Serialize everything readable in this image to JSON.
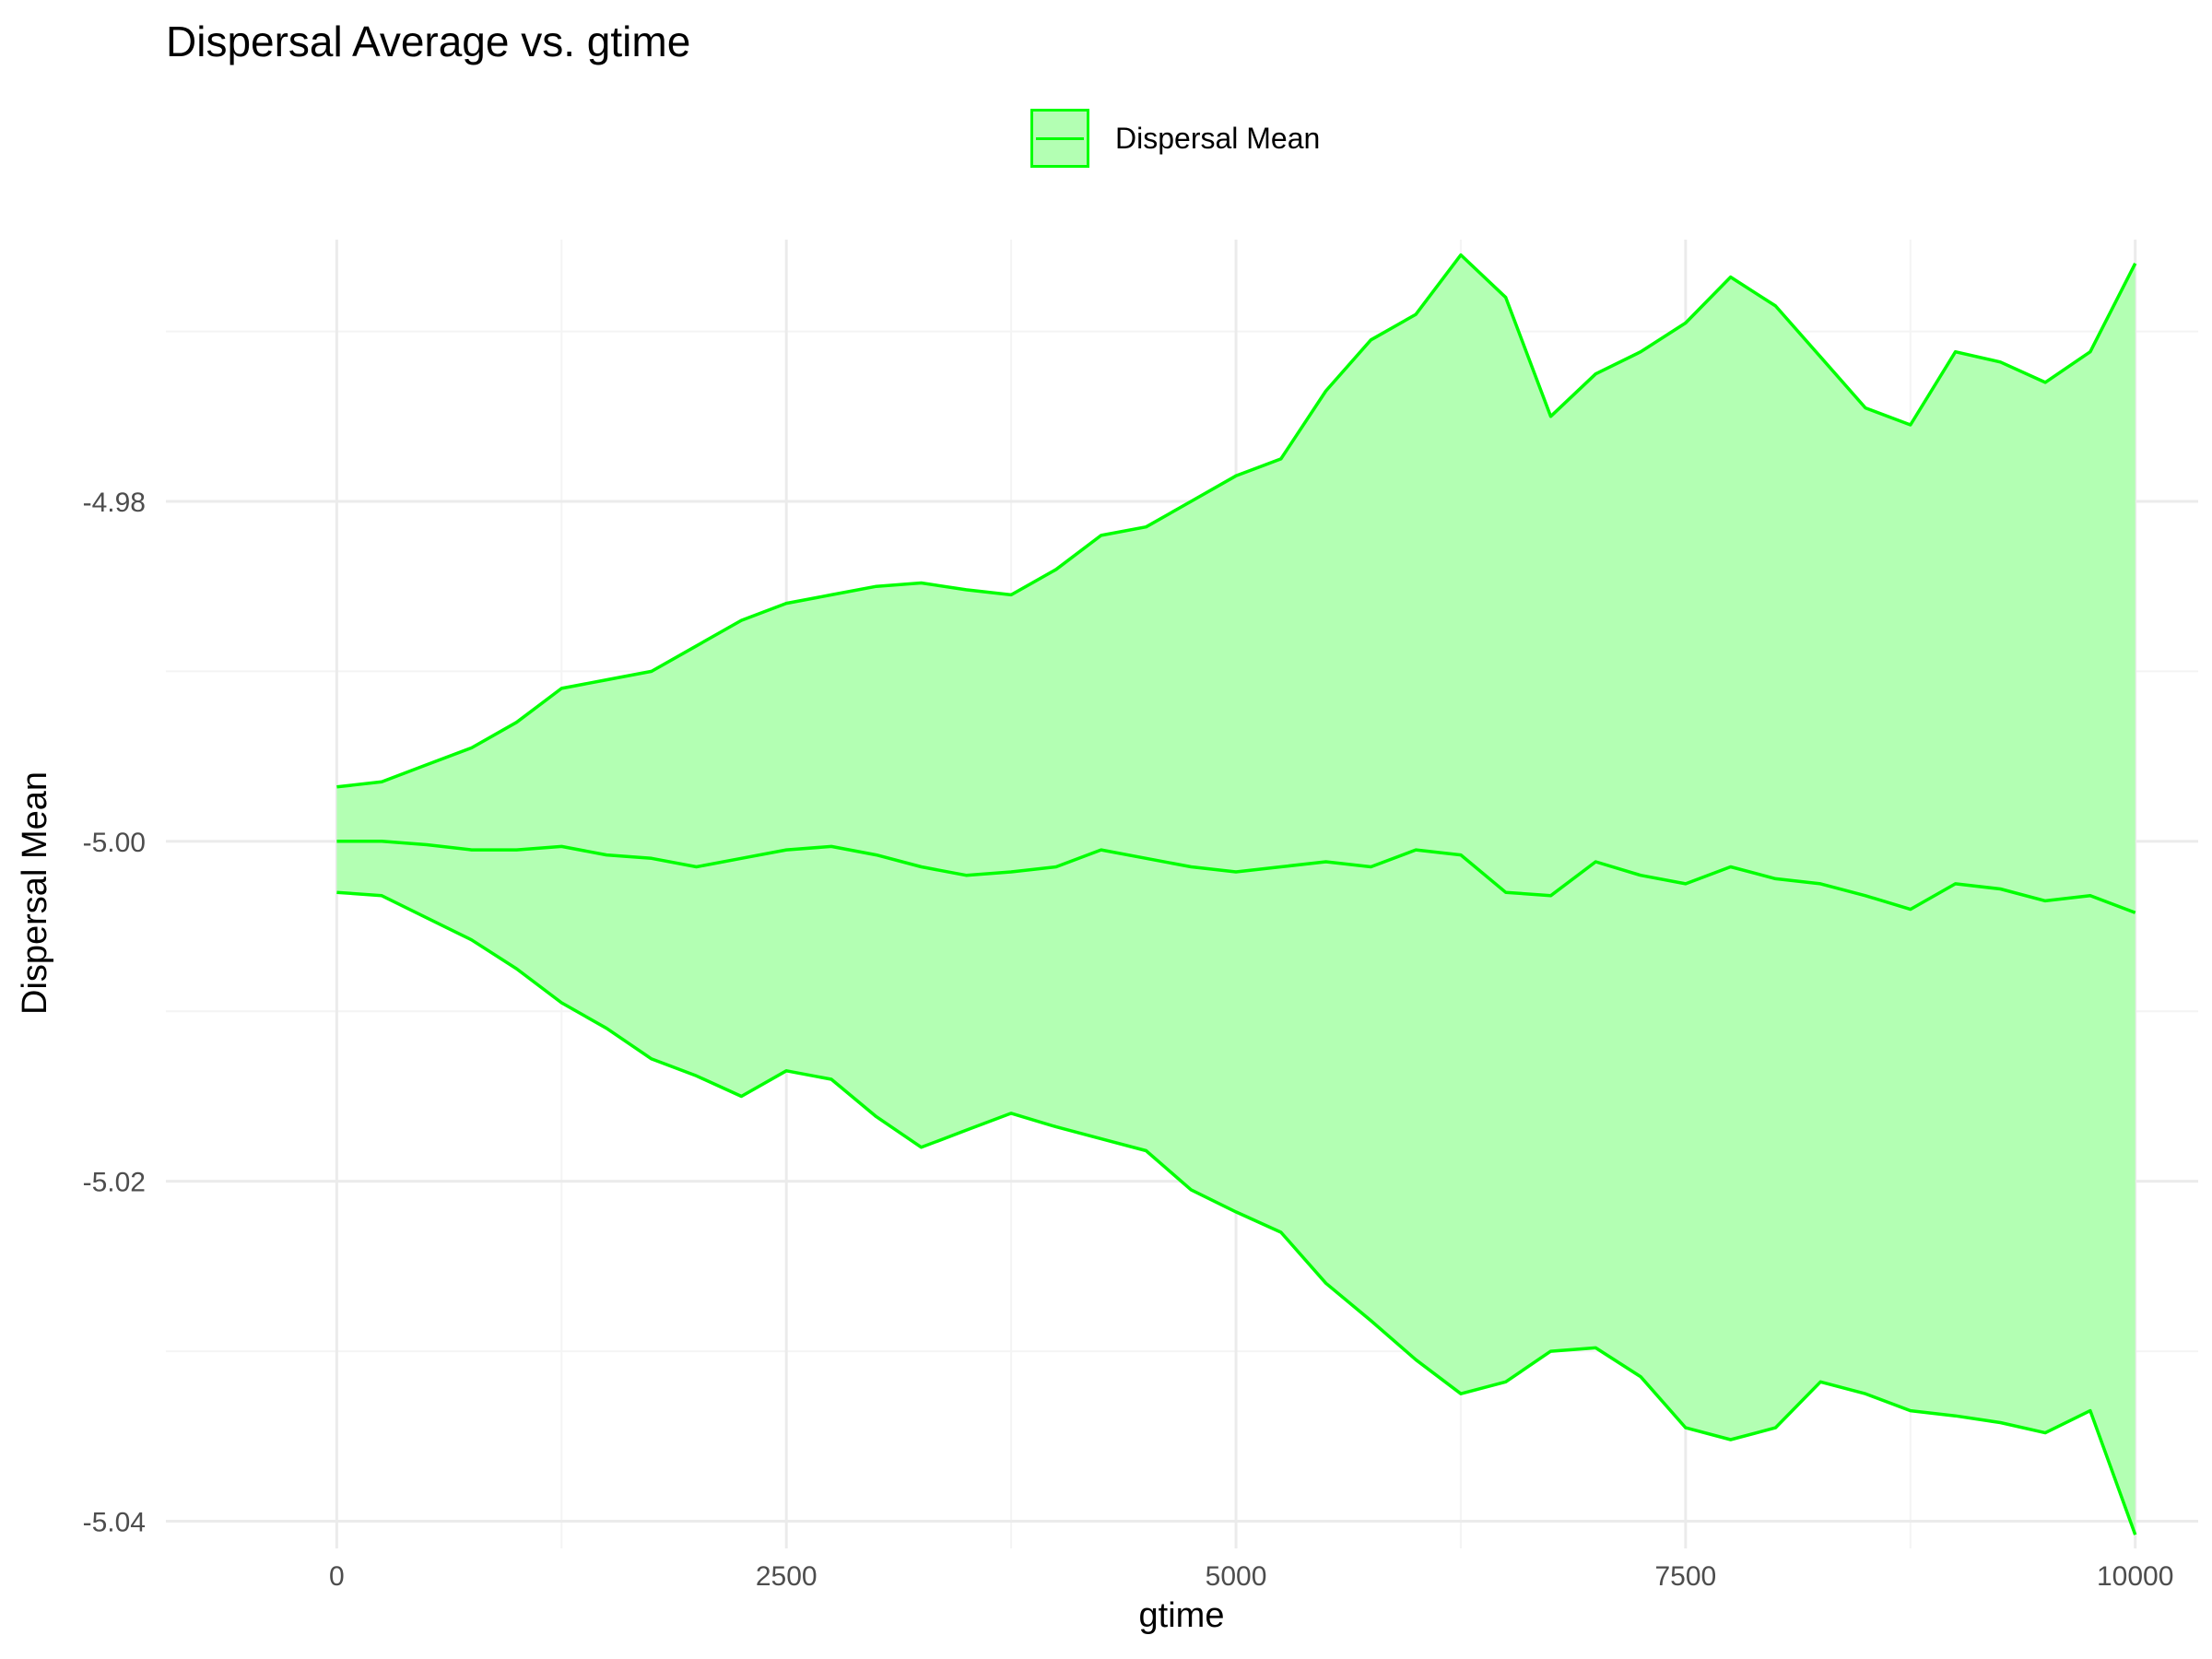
{
  "chart_data": {
    "type": "area",
    "title": "Dispersal Average vs. gtime",
    "xlabel": "gtime",
    "ylabel": "Dispersal Mean",
    "xlim": [
      -950,
      10350
    ],
    "ylim": [
      -5.0416,
      -4.9646
    ],
    "x_ticks": [
      0,
      2500,
      5000,
      7500,
      10000
    ],
    "x_tick_labels": [
      "0",
      "2500",
      "5000",
      "7500",
      "10000"
    ],
    "y_ticks": [
      -4.98,
      -5.0,
      -5.02,
      -5.04
    ],
    "y_tick_labels": [
      "-4.98",
      "-5.00",
      "-5.02",
      "-5.04"
    ],
    "x_minor": [
      1250,
      3750,
      6250,
      8750
    ],
    "y_minor": [
      -4.97,
      -4.99,
      -5.01,
      -5.03
    ],
    "grid": true,
    "legend_position": "top",
    "legend": [
      {
        "label": "Dispersal Mean"
      }
    ],
    "colors": {
      "line": "#00ff00",
      "fill": "#b3ffb3",
      "grid_major": "#ebebeb",
      "grid_minor": "#f4f4f4",
      "tick_label": "#4d4d4d",
      "text": "#000000"
    },
    "series": [
      {
        "role": "mean",
        "x": [
          0,
          250,
          500,
          750,
          1000,
          1250,
          1500,
          1750,
          2000,
          2250,
          2500,
          2750,
          3000,
          3250,
          3500,
          3750,
          4000,
          4250,
          4500,
          4750,
          5000,
          5250,
          5500,
          5750,
          6000,
          6250,
          6500,
          6750,
          7000,
          7250,
          7500,
          7750,
          8000,
          8250,
          8500,
          8750,
          9000,
          9250,
          9500,
          9750,
          10000
        ],
        "values": [
          -5.0,
          -5.0,
          -5.0002,
          -5.0005,
          -5.0005,
          -5.0003,
          -5.0008,
          -5.001,
          -5.0015,
          -5.001,
          -5.0005,
          -5.0003,
          -5.0008,
          -5.0015,
          -5.002,
          -5.0018,
          -5.0015,
          -5.0005,
          -5.001,
          -5.0015,
          -5.0018,
          -5.0015,
          -5.0012,
          -5.0015,
          -5.0005,
          -5.0008,
          -5.003,
          -5.0032,
          -5.0012,
          -5.002,
          -5.0025,
          -5.0015,
          -5.0022,
          -5.0025,
          -5.0032,
          -5.004,
          -5.0025,
          -5.0028,
          -5.0035,
          -5.0032,
          -5.0042
        ]
      },
      {
        "role": "upper",
        "x": [
          0,
          250,
          500,
          750,
          1000,
          1250,
          1500,
          1750,
          2000,
          2250,
          2500,
          2750,
          3000,
          3250,
          3500,
          3750,
          4000,
          4250,
          4500,
          4750,
          5000,
          5250,
          5500,
          5750,
          6000,
          6250,
          6500,
          6750,
          7000,
          7250,
          7500,
          7750,
          8000,
          8250,
          8500,
          8750,
          9000,
          9250,
          9500,
          9750,
          10000
        ],
        "values": [
          -4.9968,
          -4.9965,
          -4.9955,
          -4.9945,
          -4.993,
          -4.991,
          -4.9905,
          -4.99,
          -4.9885,
          -4.987,
          -4.986,
          -4.9855,
          -4.985,
          -4.9848,
          -4.9852,
          -4.9855,
          -4.984,
          -4.982,
          -4.9815,
          -4.98,
          -4.9785,
          -4.9775,
          -4.9735,
          -4.9705,
          -4.969,
          -4.9655,
          -4.968,
          -4.975,
          -4.9725,
          -4.9712,
          -4.9695,
          -4.9668,
          -4.9685,
          -4.9715,
          -4.9745,
          -4.9755,
          -4.9712,
          -4.9718,
          -4.973,
          -4.9712,
          -4.966
        ]
      },
      {
        "role": "lower",
        "x": [
          0,
          250,
          500,
          750,
          1000,
          1250,
          1500,
          1750,
          2000,
          2250,
          2500,
          2750,
          3000,
          3250,
          3500,
          3750,
          4000,
          4250,
          4500,
          4750,
          5000,
          5250,
          5500,
          5750,
          6000,
          6250,
          6500,
          6750,
          7000,
          7250,
          7500,
          7750,
          8000,
          8250,
          8500,
          8750,
          9000,
          9250,
          9500,
          9750,
          10000
        ],
        "values": [
          -5.003,
          -5.0032,
          -5.0045,
          -5.0058,
          -5.0075,
          -5.0095,
          -5.011,
          -5.0128,
          -5.0138,
          -5.015,
          -5.0135,
          -5.014,
          -5.0162,
          -5.018,
          -5.017,
          -5.016,
          -5.0168,
          -5.0175,
          -5.0182,
          -5.0205,
          -5.0218,
          -5.023,
          -5.026,
          -5.0282,
          -5.0305,
          -5.0325,
          -5.0318,
          -5.03,
          -5.0298,
          -5.0315,
          -5.0345,
          -5.0352,
          -5.0345,
          -5.0318,
          -5.0325,
          -5.0335,
          -5.0338,
          -5.0342,
          -5.0348,
          -5.0335,
          -5.0408
        ]
      }
    ]
  }
}
